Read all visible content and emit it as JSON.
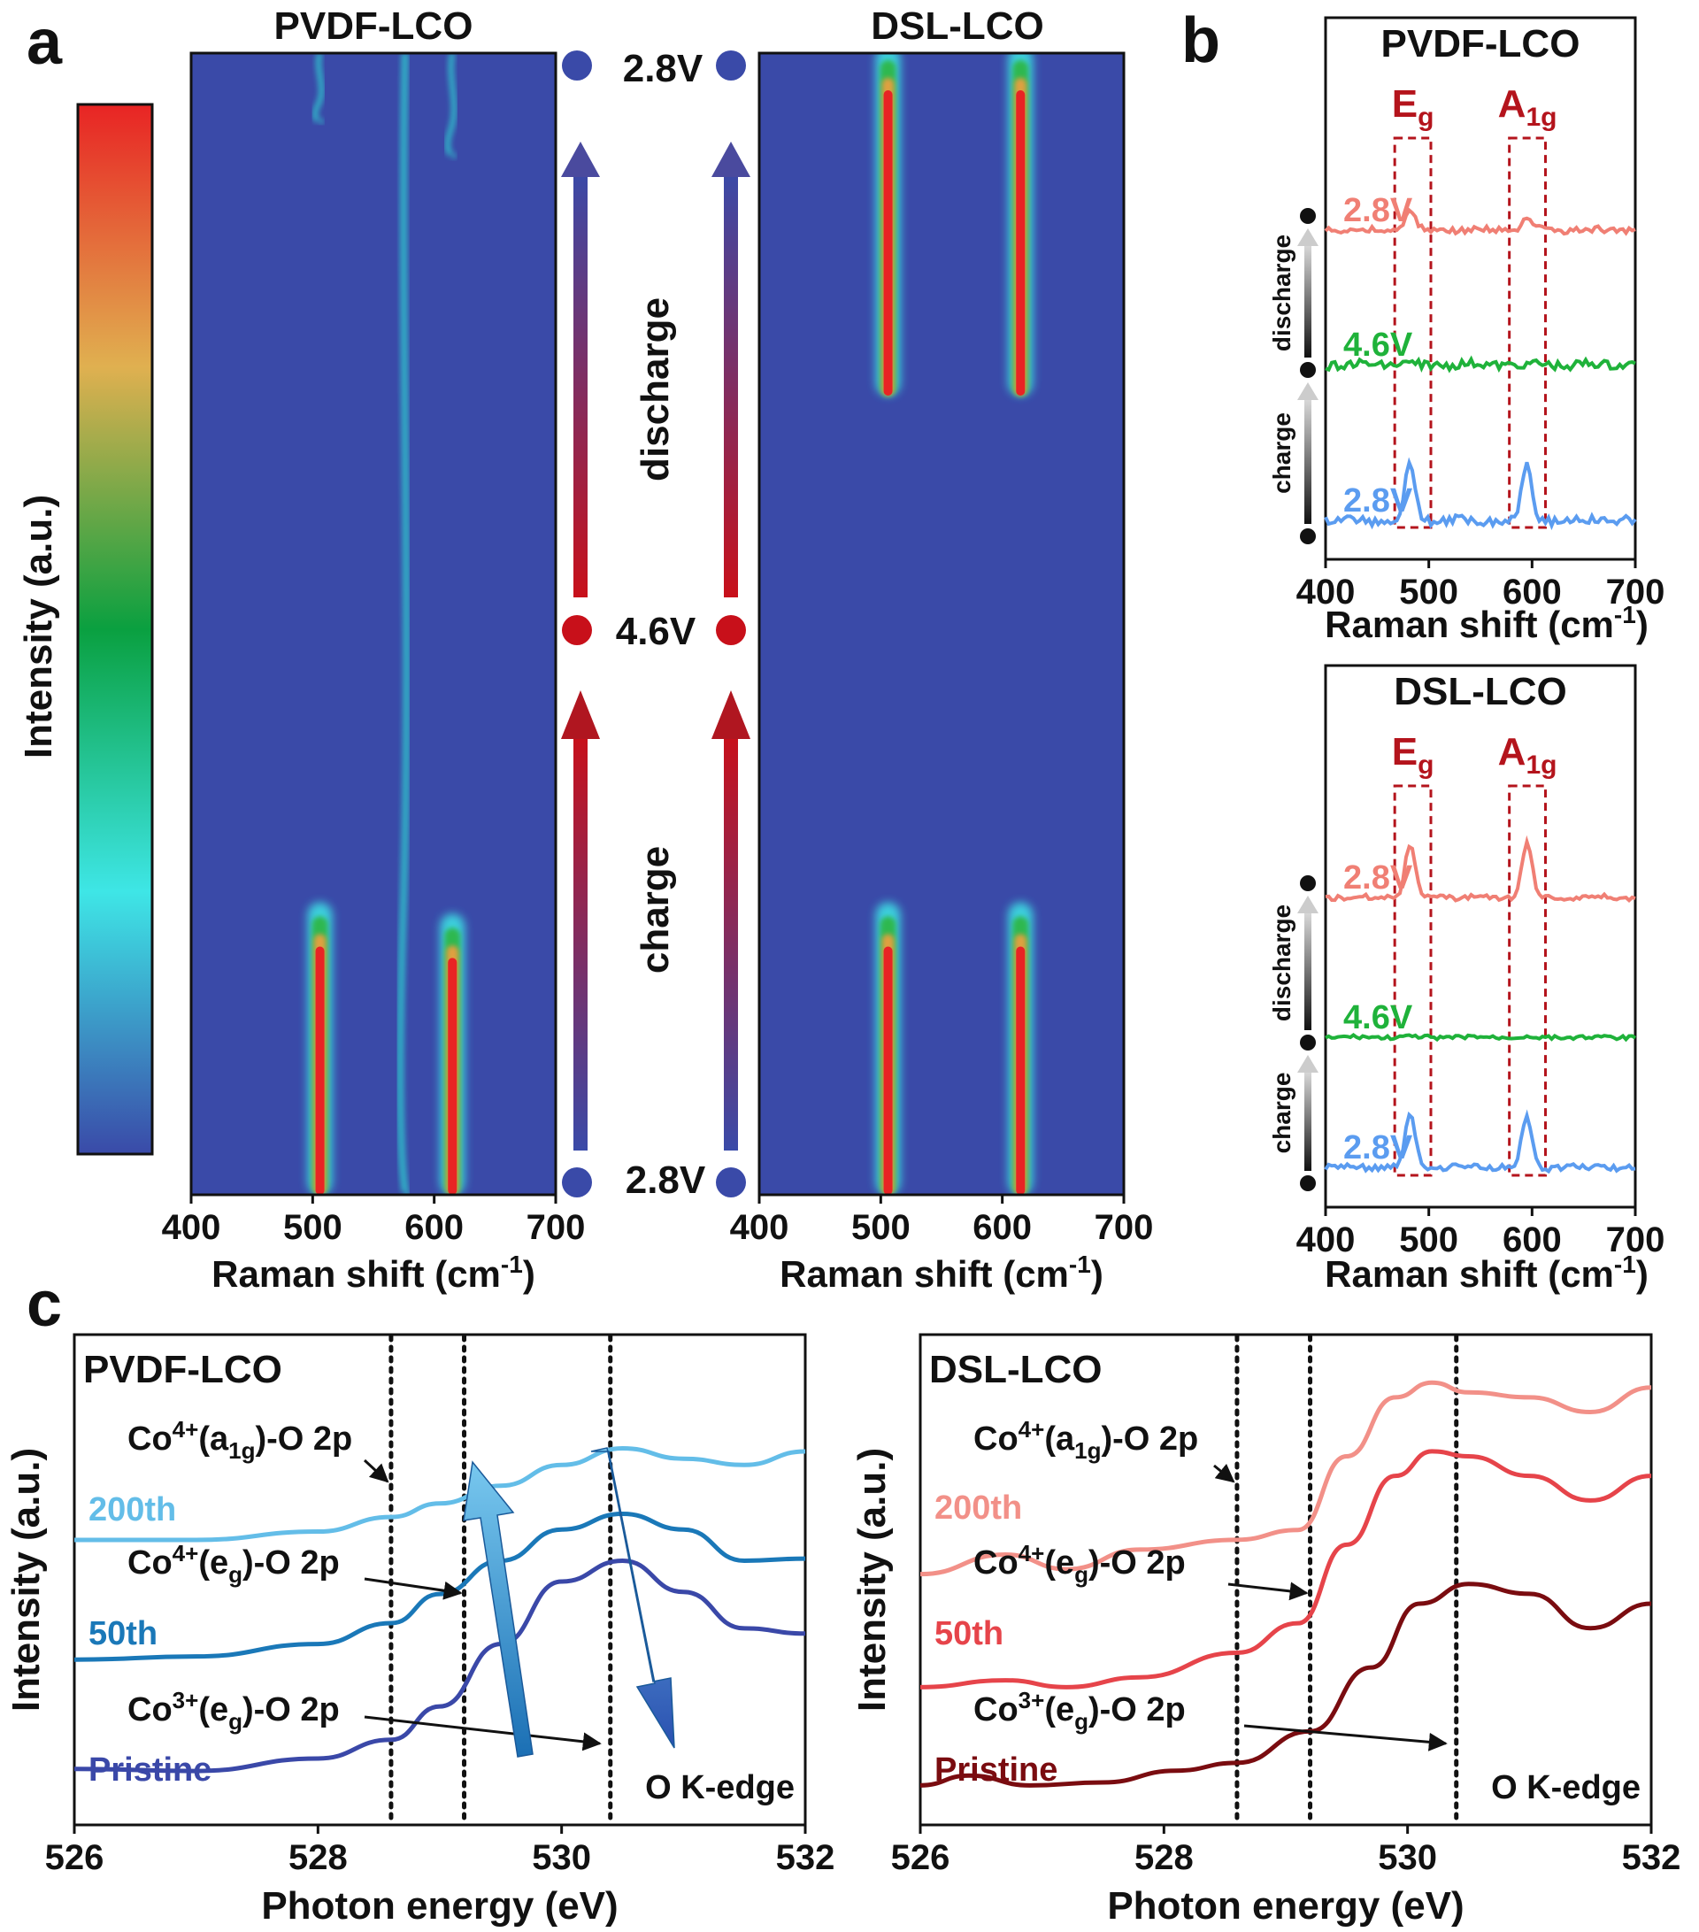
{
  "panel_labels": {
    "a": "a",
    "b": "b",
    "c": "c"
  },
  "colors": {
    "map_bg": "#3a4aa8",
    "blue_dot": "#3a4aa8",
    "red_dot": "#c8101a",
    "salmon": "#f07f74",
    "green": "#1fb23a",
    "lightblue": "#5b9cf0",
    "box": "#b4141c",
    "c_light": "#63bde8",
    "c_mid": "#1a78b8",
    "c_dark": "#3a48a8",
    "d_light": "#f29088",
    "d_mid": "#e6444a",
    "d_dark": "#7a0c10"
  },
  "chart_data": [
    {
      "id": "a-colorbar",
      "type": "heatmap",
      "title": "",
      "ylabel": "Intensity (a.u.)",
      "colormap": [
        "#3a4aa8",
        "#3ee6e6",
        "#0aa040",
        "#e0b050",
        "#e82424"
      ]
    },
    {
      "id": "a-pvdf",
      "type": "heatmap",
      "title": "PVDF-LCO",
      "xlabel": "Raman shift (cm",
      "xlabel_sup": "-1",
      "xlabel_end": ")",
      "xlim": [
        400,
        700
      ],
      "xticks": [
        "400",
        "500",
        "600",
        "700"
      ],
      "streaks": [
        {
          "x": 506,
          "from": 0.0,
          "to": 0.25,
          "level": 1.0
        },
        {
          "x": 615,
          "from": 0.0,
          "to": 0.24,
          "level": 0.95
        },
        {
          "x": 576,
          "from": 0.0,
          "to": 1.0,
          "level": 0.35
        },
        {
          "x": 506,
          "from": 0.94,
          "to": 1.0,
          "level": 0.25
        },
        {
          "x": 615,
          "from": 0.91,
          "to": 1.0,
          "level": 0.25
        }
      ]
    },
    {
      "id": "a-dsl",
      "type": "heatmap",
      "title": "DSL-LCO",
      "xlabel": "Raman shift (cm",
      "xlabel_sup": "-1",
      "xlabel_end": ")",
      "xlim": [
        400,
        700
      ],
      "xticks": [
        "400",
        "500",
        "600",
        "700"
      ],
      "streaks": [
        {
          "x": 506,
          "from": 0.0,
          "to": 0.25,
          "level": 1.0
        },
        {
          "x": 615,
          "from": 0.0,
          "to": 0.25,
          "level": 1.0
        },
        {
          "x": 506,
          "from": 0.7,
          "to": 1.0,
          "level": 1.0
        },
        {
          "x": 615,
          "from": 0.7,
          "to": 1.0,
          "level": 1.0
        }
      ]
    },
    {
      "id": "a-voltage",
      "type": "table",
      "voltages": [
        "2.8V",
        "4.6V",
        "2.8V"
      ],
      "labels": {
        "discharge": "discharge",
        "charge": "charge"
      }
    },
    {
      "id": "b-pvdf",
      "type": "line",
      "title": "PVDF-LCO",
      "xlabel": "Raman shift (cm",
      "xlabel_sup": "-1",
      "xlabel_end": ")",
      "xlim": [
        400,
        700
      ],
      "xticks": [
        "400",
        "500",
        "600",
        "700"
      ],
      "peak_labels": [
        {
          "base": "E",
          "sub": "g"
        },
        {
          "base": "A",
          "sub": "1g"
        }
      ],
      "peak_bands": [
        [
          467,
          502
        ],
        [
          578,
          613
        ]
      ],
      "arrows": [
        "discharge",
        "charge"
      ],
      "series": [
        {
          "name": "2.8V",
          "role": "top",
          "peaks": [
            [
              482,
              0.55
            ],
            [
              595,
              0.3
            ]
          ],
          "noise": 0.25
        },
        {
          "name": "4.6V",
          "role": "mid",
          "peaks": [],
          "noise": 0.35
        },
        {
          "name": "2.8V",
          "role": "bottom",
          "peaks": [
            [
              482,
              1.7
            ],
            [
              595,
              1.7
            ]
          ],
          "noise": 0.35
        }
      ]
    },
    {
      "id": "b-dsl",
      "type": "line",
      "title": "DSL-LCO",
      "xlabel": "Raman shift (cm",
      "xlabel_sup": "-1",
      "xlabel_end": ")",
      "xlim": [
        400,
        700
      ],
      "xticks": [
        "400",
        "500",
        "600",
        "700"
      ],
      "peak_labels": [
        {
          "base": "E",
          "sub": "g"
        },
        {
          "base": "A",
          "sub": "1g"
        }
      ],
      "peak_bands": [
        [
          467,
          502
        ],
        [
          578,
          613
        ]
      ],
      "arrows": [
        "discharge",
        "charge"
      ],
      "series": [
        {
          "name": "2.8V",
          "role": "top",
          "peaks": [
            [
              482,
              1.6
            ],
            [
              595,
              1.6
            ]
          ],
          "noise": 0.2
        },
        {
          "name": "4.6V",
          "role": "mid",
          "peaks": [],
          "noise": 0.15
        },
        {
          "name": "2.8V",
          "role": "bottom",
          "peaks": [
            [
              482,
              1.5
            ],
            [
              595,
              1.5
            ]
          ],
          "noise": 0.25
        }
      ]
    },
    {
      "id": "c-pvdf",
      "type": "line",
      "title": "PVDF-LCO",
      "xlabel": "Photon energy (eV)",
      "ylabel": "Intensity (a.u.)",
      "xlim": [
        526,
        532
      ],
      "xticks": [
        "526",
        "528",
        "530",
        "532"
      ],
      "vlines": [
        528.6,
        529.2,
        530.4
      ],
      "annotations": [
        {
          "base": "Co",
          "sup": "4+",
          "mid": "(a",
          "sub": "1g",
          "end": ")-O 2p"
        },
        {
          "base": "Co",
          "sup": "4+",
          "mid": "(e",
          "sub": "g",
          "end": ")-O 2p"
        },
        {
          "base": "Co",
          "sup": "3+",
          "mid": "(e",
          "sub": "g",
          "end": ")-O 2p"
        }
      ],
      "edge_label": "O K-edge",
      "series": [
        {
          "name": "200th",
          "x": [
            526,
            527,
            528,
            528.6,
            529,
            529.5,
            530,
            530.5,
            531,
            531.5,
            532
          ],
          "y": [
            2.2,
            2.2,
            2.28,
            2.42,
            2.55,
            2.72,
            2.92,
            3.08,
            2.98,
            2.92,
            3.05
          ]
        },
        {
          "name": "50th",
          "x": [
            526,
            527,
            528,
            528.6,
            529,
            529.5,
            530,
            530.5,
            531,
            531.5,
            532
          ],
          "y": [
            1.05,
            1.08,
            1.2,
            1.4,
            1.68,
            2.0,
            2.3,
            2.45,
            2.3,
            2.0,
            2.02
          ]
        },
        {
          "name": "Pristine",
          "x": [
            526,
            527,
            528,
            528.6,
            529,
            529.5,
            530,
            530.5,
            531,
            531.5,
            532
          ],
          "y": [
            0.0,
            -0.02,
            0.1,
            0.28,
            0.6,
            1.2,
            1.8,
            2.0,
            1.7,
            1.35,
            1.3
          ]
        }
      ]
    },
    {
      "id": "c-dsl",
      "type": "line",
      "title": "DSL-LCO",
      "xlabel": "Photon energy (eV)",
      "ylabel": "Intensity (a.u.)",
      "xlim": [
        526,
        532
      ],
      "xticks": [
        "526",
        "528",
        "530",
        "532"
      ],
      "vlines": [
        528.6,
        529.2,
        530.4
      ],
      "annotations": [
        {
          "base": "Co",
          "sup": "4+",
          "mid": "(a",
          "sub": "1g",
          "end": ")-O 2p"
        },
        {
          "base": "Co",
          "sup": "4+",
          "mid": "(e",
          "sub": "g",
          "end": ")-O 2p"
        },
        {
          "base": "Co",
          "sup": "3+",
          "mid": "(e",
          "sub": "g",
          "end": ")-O 2p"
        }
      ],
      "edge_label": "O K-edge",
      "series": [
        {
          "name": "200th",
          "x": [
            526,
            526.7,
            527.2,
            527.8,
            528.6,
            529.1,
            529.5,
            529.9,
            530.2,
            530.5,
            531,
            531.5,
            532
          ],
          "y": [
            2.2,
            2.4,
            2.25,
            2.45,
            2.55,
            2.65,
            3.4,
            4.0,
            4.15,
            4.05,
            4.0,
            3.85,
            4.1
          ]
        },
        {
          "name": "50th",
          "x": [
            526,
            526.7,
            527.2,
            527.8,
            528.6,
            529.1,
            529.5,
            529.9,
            530.2,
            530.5,
            531,
            531.5,
            532
          ],
          "y": [
            1.05,
            1.12,
            1.05,
            1.15,
            1.4,
            1.7,
            2.5,
            3.2,
            3.45,
            3.4,
            3.2,
            2.95,
            3.2
          ]
        },
        {
          "name": "Pristine",
          "x": [
            526,
            526.4,
            526.9,
            527.5,
            528.1,
            528.6,
            529.2,
            529.7,
            530.1,
            530.5,
            531,
            531.5,
            532
          ],
          "y": [
            0.05,
            0.15,
            0.05,
            0.08,
            0.2,
            0.28,
            0.6,
            1.25,
            1.9,
            2.1,
            2.0,
            1.65,
            1.9
          ]
        }
      ]
    }
  ]
}
